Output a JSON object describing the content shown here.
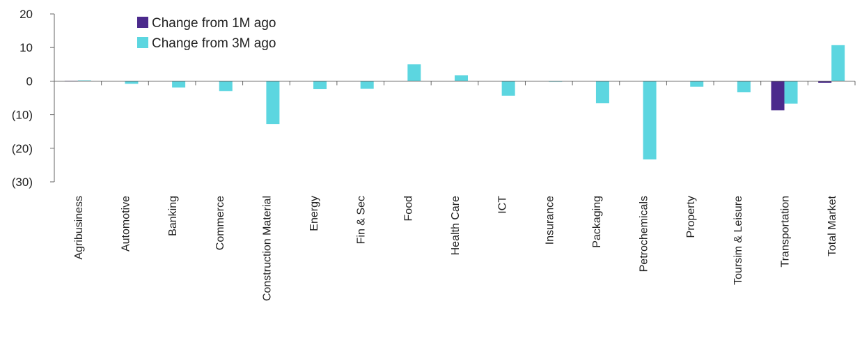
{
  "chart_data": {
    "type": "bar",
    "title": "",
    "xlabel": "",
    "ylabel": "",
    "ylim": [
      -30,
      20
    ],
    "yticks": [
      20,
      10,
      0,
      -10,
      -20,
      -30
    ],
    "ytick_labels": [
      "20",
      "10",
      "0",
      "(10)",
      "(20)",
      "(30)"
    ],
    "grid": false,
    "legend_position": "top-left",
    "categories": [
      "Agribusiness",
      "Automotive",
      "Banking",
      "Commerce",
      "Construction Material",
      "Energy",
      "Fin & Sec",
      "Food",
      "Health Care",
      "ICT",
      "Insurance",
      "Packaging",
      "Petrochemicals",
      "Property",
      "Toursim & Leisure",
      "Transportation",
      "Total Market"
    ],
    "series": [
      {
        "name": "Change from 1M ago",
        "color": "#4B2A8C",
        "values": [
          0.1,
          0.0,
          0.0,
          0.0,
          0.0,
          0.0,
          0.0,
          0.0,
          0.0,
          0.0,
          0.0,
          0.0,
          0.0,
          0.0,
          0.0,
          -8.7,
          -0.5
        ]
      },
      {
        "name": "Change from 3M ago",
        "color": "#5CD6E0",
        "values": [
          0.2,
          -0.8,
          -1.9,
          -3.0,
          -12.8,
          -2.4,
          -2.3,
          5.0,
          1.7,
          -4.4,
          -0.2,
          -6.6,
          -23.3,
          -1.7,
          -3.3,
          -6.7,
          10.7
        ]
      }
    ]
  }
}
